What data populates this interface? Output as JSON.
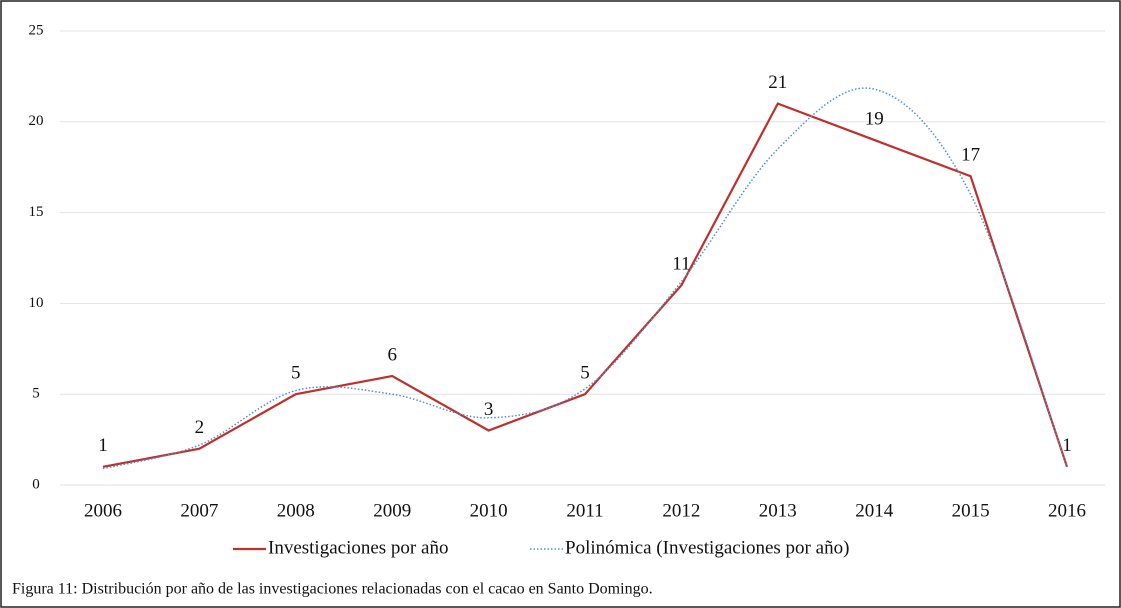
{
  "chart_data": {
    "type": "line",
    "categories": [
      "2006",
      "2007",
      "2008",
      "2009",
      "2010",
      "2011",
      "2012",
      "2013",
      "2014",
      "2015",
      "2016"
    ],
    "series": [
      {
        "name": "Investigaciones por año",
        "color": "#c0302b",
        "values": [
          1,
          2,
          5,
          6,
          3,
          5,
          11,
          21,
          19,
          17,
          1
        ]
      },
      {
        "name": "Polinómica (Investigaciones por año)",
        "color": "#4f8fcf",
        "style": "dotted",
        "values": [
          0.9,
          2.2,
          5.2,
          5.0,
          3.7,
          5.3,
          11.2,
          18.5,
          21.8,
          16,
          1
        ]
      }
    ],
    "data_labels_series": 0,
    "ylim": [
      0,
      25
    ],
    "yticks": [
      0,
      5,
      10,
      15,
      20,
      25
    ],
    "grid": true,
    "caption": "Figura 11: Distribución por año de las investigaciones relacionadas con el cacao en Santo Domingo."
  }
}
